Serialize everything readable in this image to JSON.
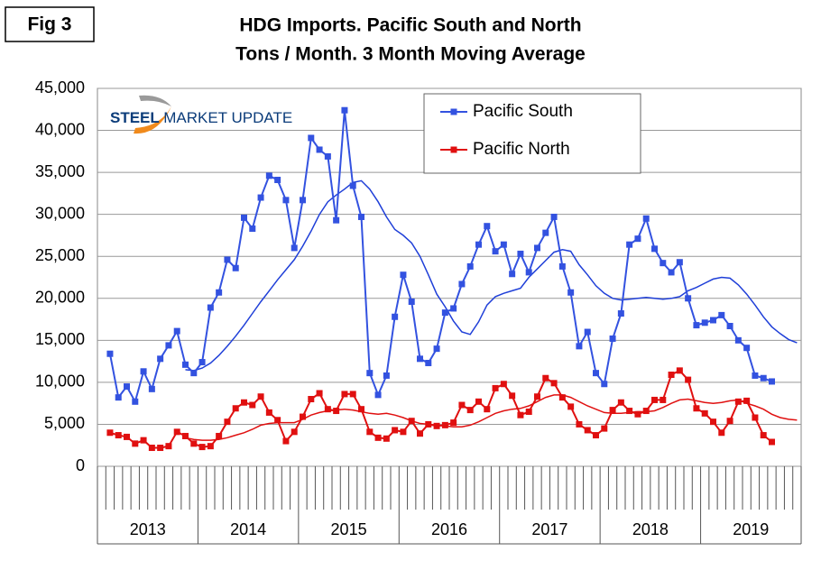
{
  "figure_label": "Fig 3",
  "logo": {
    "text_a": "STEEL",
    "text_b": "MARKET UPDATE"
  },
  "chart_data": {
    "type": "line",
    "title": "HDG Imports. Pacific South and North",
    "subtitle": "Tons / Month. 3 Month Moving Average",
    "categories": [
      null,
      null,
      null,
      null,
      null,
      null,
      null,
      null,
      null,
      null,
      null,
      null,
      null,
      null,
      null,
      null,
      null,
      null,
      null,
      null,
      null,
      null,
      null,
      null,
      null,
      null,
      null,
      null,
      null,
      null,
      null,
      null,
      null,
      null,
      null,
      null,
      null,
      null,
      null,
      null,
      null,
      null,
      null,
      null,
      null,
      null,
      null,
      null,
      null,
      null,
      null,
      null,
      null,
      null,
      null,
      null,
      null,
      null,
      null,
      null,
      null,
      null,
      null,
      null,
      null,
      null,
      null,
      null,
      null,
      null,
      null,
      null,
      null,
      null,
      null,
      null,
      null,
      null,
      null,
      null,
      null,
      null,
      null,
      null
    ],
    "year_labels": [
      "2013",
      "2014",
      "2015",
      "2016",
      "2017",
      "2018",
      "2019"
    ],
    "ylim": [
      0,
      45000
    ],
    "yticks": [
      0,
      {
        "value": 5000,
        "label": "5,000"
      },
      {
        "value": 10000,
        "label": "10,000"
      },
      {
        "value": 15000,
        "label": "15,000"
      },
      {
        "value": 20000,
        "label": "20,000"
      },
      {
        "value": 25000,
        "label": "25,000"
      },
      {
        "value": 30000,
        "label": "30,000"
      },
      {
        "value": 35000,
        "label": "35,000"
      },
      {
        "value": 40000,
        "label": "40,000"
      },
      {
        "value": 45000,
        "label": "45,000"
      }
    ],
    "grid": true,
    "series": [
      {
        "name": "Pacific South",
        "color": "#3352e0",
        "trend_color": "#1f3fd8",
        "values": [
          null,
          13400,
          8200,
          9500,
          7700,
          11300,
          9200,
          12800,
          14400,
          16100,
          12100,
          11100,
          12400,
          18900,
          20700,
          24600,
          23600,
          29600,
          28300,
          32000,
          34600,
          34100,
          31700,
          26000,
          31700,
          39100,
          37700,
          36900,
          29300,
          42400,
          33400,
          29700,
          11100,
          8500,
          10800,
          17800,
          22800,
          19600,
          12800,
          12300,
          14000,
          18300,
          18800,
          21700,
          23800,
          26400,
          28600,
          25600,
          26400,
          22900,
          25300,
          23100,
          26000,
          27800,
          29700,
          23800,
          20700,
          14300,
          16000,
          11100,
          9800,
          15200,
          18200,
          26400,
          27100,
          29500,
          25900,
          24200,
          23100,
          24300,
          20000,
          16800,
          17100,
          17400,
          18000,
          16700,
          15000,
          14100,
          10800,
          10500,
          10100,
          null,
          null,
          null
        ],
        "trend_values": [
          null,
          null,
          null,
          null,
          null,
          null,
          null,
          null,
          null,
          null,
          11500,
          11400,
          11700,
          12300,
          13200,
          14300,
          15500,
          16800,
          18200,
          19600,
          20900,
          22200,
          23400,
          24600,
          26200,
          28000,
          30000,
          31500,
          32300,
          33000,
          33800,
          34000,
          33000,
          31500,
          29700,
          28200,
          27500,
          26600,
          25000,
          22800,
          20500,
          19000,
          17300,
          16000,
          15700,
          17200,
          19200,
          20200,
          20600,
          20900,
          21200,
          22500,
          23500,
          24500,
          25500,
          25800,
          25600,
          24000,
          22800,
          21500,
          20600,
          20000,
          19800,
          19900,
          20000,
          20100,
          20000,
          19900,
          20000,
          20200,
          20900,
          21300,
          21800,
          22300,
          22500,
          22400,
          21600,
          20500,
          19200,
          17800,
          16600,
          15800,
          15100,
          14700
        ]
      },
      {
        "name": "Pacific North",
        "color": "#e01010",
        "trend_color": "#e01010",
        "values": [
          null,
          4000,
          3700,
          3500,
          2700,
          3100,
          2200,
          2200,
          2400,
          4100,
          3600,
          2700,
          2300,
          2400,
          3600,
          5300,
          6900,
          7600,
          7300,
          8300,
          6400,
          5500,
          3000,
          4100,
          5900,
          8000,
          8700,
          6800,
          6600,
          8600,
          8600,
          6800,
          4100,
          3400,
          3300,
          4300,
          4100,
          5400,
          3900,
          5000,
          4800,
          4900,
          5200,
          7300,
          6700,
          7700,
          6800,
          9300,
          9800,
          8400,
          6100,
          6500,
          8300,
          10500,
          9900,
          8200,
          7100,
          5000,
          4300,
          3700,
          4500,
          6700,
          7600,
          6600,
          6200,
          6600,
          7900,
          7900,
          10900,
          11400,
          10300,
          6900,
          6300,
          5300,
          4000,
          5400,
          7700,
          7800,
          5800,
          3700,
          2900,
          null,
          null,
          null
        ],
        "trend_values": [
          null,
          null,
          null,
          null,
          null,
          null,
          null,
          null,
          null,
          null,
          3400,
          3200,
          3100,
          3100,
          3200,
          3400,
          3700,
          4000,
          4400,
          4900,
          5100,
          5200,
          5200,
          5200,
          5600,
          6100,
          6400,
          6600,
          6700,
          6800,
          6700,
          6500,
          6300,
          6200,
          6300,
          6100,
          5800,
          5400,
          5100,
          5000,
          4900,
          4800,
          4700,
          4700,
          4900,
          5300,
          5800,
          6300,
          6600,
          6800,
          6900,
          7200,
          7700,
          8200,
          8500,
          8500,
          8200,
          7700,
          7200,
          6800,
          6400,
          6300,
          6300,
          6400,
          6500,
          6500,
          6600,
          7000,
          7500,
          7900,
          8000,
          7800,
          7600,
          7500,
          7600,
          7800,
          7900,
          7500,
          7200,
          6800,
          6200,
          5800,
          5600,
          5500
        ]
      }
    ]
  }
}
